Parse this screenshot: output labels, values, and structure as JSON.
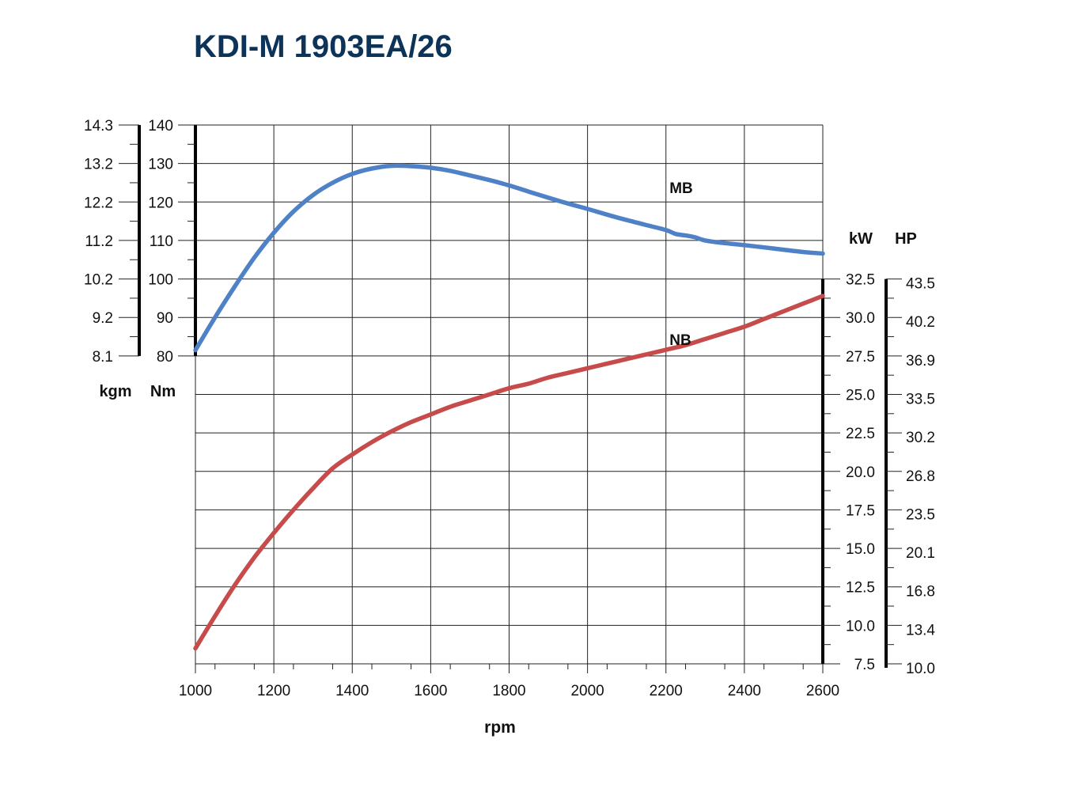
{
  "chart_data": {
    "type": "line",
    "title": "KDI-M 1903EA/26",
    "xlabel": "rpm",
    "x_ticks": [
      "1000",
      "1200",
      "1400",
      "1600",
      "1800",
      "2000",
      "2200",
      "2400",
      "2600"
    ],
    "xlim": [
      1000,
      2600
    ],
    "grid": true,
    "axes": {
      "torque_nm": {
        "label": "Nm",
        "range": [
          80,
          140
        ],
        "ticks": [
          "80",
          "90",
          "100",
          "110",
          "120",
          "130",
          "140"
        ]
      },
      "torque_kgm": {
        "label": "kgm",
        "ticks": [
          "8.1",
          "9.2",
          "10.2",
          "11.2",
          "12.2",
          "13.2",
          "14.3"
        ]
      },
      "power_kw": {
        "label": "kW",
        "range": [
          7.5,
          32.5
        ],
        "ticks": [
          "7.5",
          "10.0",
          "12.5",
          "15.0",
          "17.5",
          "20.0",
          "22.5",
          "25.0",
          "27.5",
          "30.0",
          "32.5"
        ]
      },
      "power_hp": {
        "label": "HP",
        "ticks": [
          "10.0",
          "13.4",
          "16.8",
          "20.1",
          "23.5",
          "26.8",
          "30.2",
          "33.5",
          "36.9",
          "40.2",
          "43.5"
        ]
      }
    },
    "series": [
      {
        "name": "MB",
        "color": "#4f81c7",
        "axis": "torque_nm",
        "x": [
          1000,
          1050,
          1100,
          1150,
          1200,
          1250,
          1300,
          1350,
          1400,
          1450,
          1500,
          1550,
          1600,
          1650,
          1700,
          1750,
          1800,
          1850,
          1900,
          1950,
          2000,
          2050,
          2100,
          2150,
          2200,
          2225,
          2250,
          2275,
          2300,
          2350,
          2400,
          2450,
          2500,
          2550,
          2600
        ],
        "values": [
          81.5,
          90.0,
          98.0,
          105.5,
          112.0,
          117.5,
          121.8,
          125.0,
          127.3,
          128.7,
          129.4,
          129.3,
          128.9,
          128.1,
          126.9,
          125.7,
          124.3,
          122.7,
          121.1,
          119.6,
          118.2,
          116.7,
          115.3,
          114.0,
          112.7,
          111.7,
          111.3,
          110.8,
          110.0,
          109.3,
          108.8,
          108.2,
          107.6,
          107.0,
          106.6
        ]
      },
      {
        "name": "NB",
        "color": "#c84b4b",
        "axis": "power_kw",
        "x": [
          1000,
          1050,
          1100,
          1150,
          1200,
          1250,
          1300,
          1350,
          1400,
          1450,
          1500,
          1550,
          1600,
          1650,
          1700,
          1750,
          1800,
          1850,
          1900,
          1950,
          2000,
          2050,
          2100,
          2150,
          2200,
          2250,
          2300,
          2350,
          2400,
          2450,
          2500,
          2550,
          2600
        ],
        "values": [
          8.5,
          10.6,
          12.6,
          14.4,
          16.0,
          17.5,
          18.9,
          20.2,
          21.1,
          21.9,
          22.6,
          23.2,
          23.7,
          24.2,
          24.6,
          25.0,
          25.4,
          25.7,
          26.1,
          26.4,
          26.7,
          27.0,
          27.3,
          27.6,
          27.9,
          28.2,
          28.6,
          29.0,
          29.4,
          29.9,
          30.4,
          30.9,
          31.4
        ]
      }
    ]
  }
}
